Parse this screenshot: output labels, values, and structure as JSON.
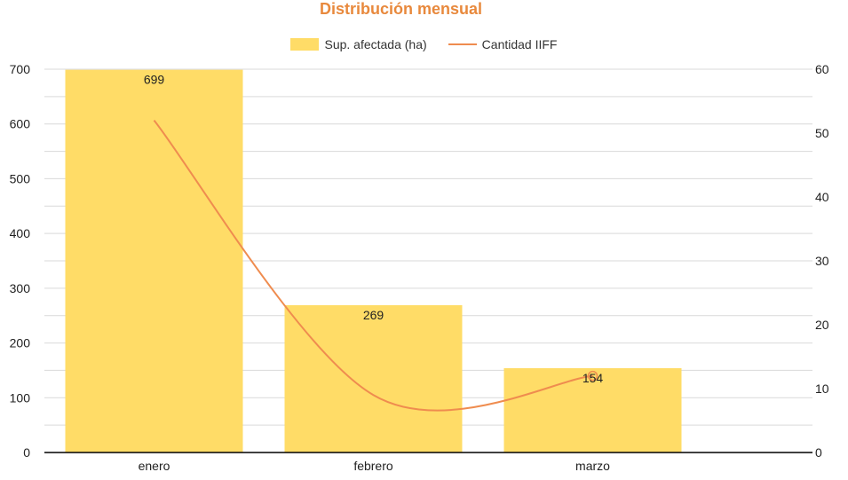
{
  "chart_data": {
    "type": "bar",
    "title": "Distribución mensual",
    "categories": [
      "enero",
      "febrero",
      "marzo"
    ],
    "series": [
      {
        "name": "Sup. afectada (ha)",
        "type": "bar",
        "axis": "left",
        "values": [
          699,
          269,
          154
        ],
        "color": "#ffdc67"
      },
      {
        "name": "Cantidad IIFF",
        "type": "line",
        "axis": "right",
        "values": [
          52,
          9,
          12
        ],
        "color": "#ef8c4f"
      }
    ],
    "data_labels": [
      "699",
      "269",
      "154"
    ],
    "ylim_left": [
      0,
      700
    ],
    "yticks_left": [
      "0",
      "100",
      "200",
      "300",
      "400",
      "500",
      "600",
      "700"
    ],
    "ylim_right": [
      0,
      60
    ],
    "yticks_right": [
      "0",
      "10",
      "20",
      "30",
      "40",
      "50",
      "60"
    ],
    "grid": true,
    "legend": "top"
  }
}
